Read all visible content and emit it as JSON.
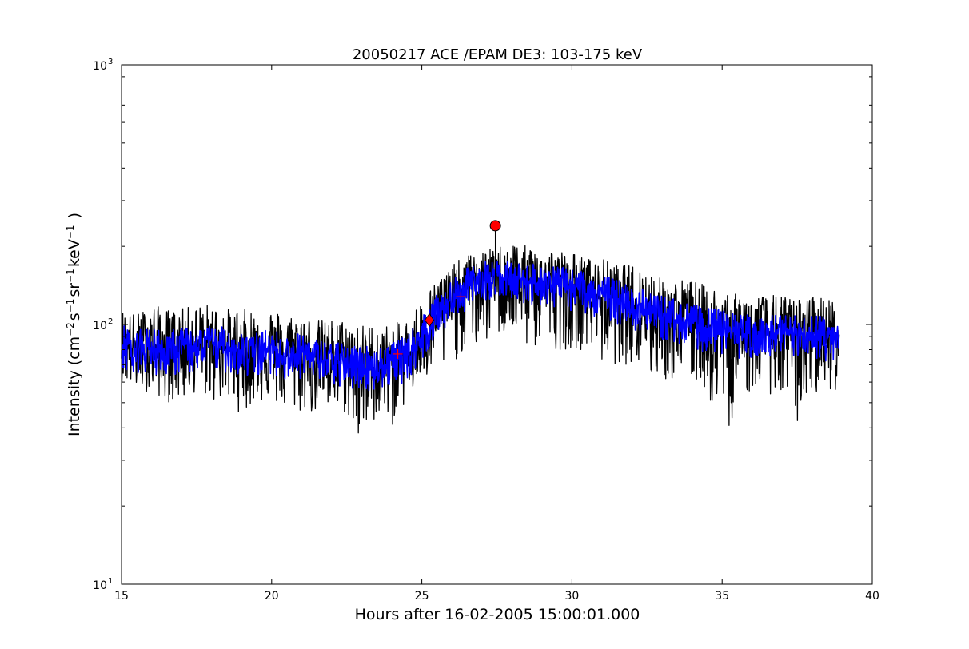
{
  "chart_data": {
    "type": "line",
    "title": "20050217 ACE /EPAM DE3: 103-175 keV",
    "xlabel": "Hours after 16-02-2005 15:00:01.000",
    "ylabel": "Intensity (cm^-2 s^-1 sr^-1 keV^-1 )",
    "ylabel_parts": [
      "Intensity (cm",
      "−2",
      "s",
      "−1",
      "sr",
      "−1",
      "keV",
      "−1",
      " )"
    ],
    "xlim": [
      15,
      40
    ],
    "ylim": [
      10,
      1000
    ],
    "yscale": "log",
    "xticks": [
      15,
      20,
      25,
      30,
      35,
      40
    ],
    "xtick_labels": [
      "15",
      "20",
      "25",
      "30",
      "35",
      "40"
    ],
    "yticks": [
      10,
      100,
      1000
    ],
    "ytick_labels": [
      [
        "10",
        "1"
      ],
      [
        "10",
        "2"
      ],
      [
        "10",
        "3"
      ]
    ],
    "grid": false,
    "series": [
      {
        "style": "raw",
        "color": "#000000",
        "x": [
          15.0,
          15.5,
          16.0,
          16.5,
          17.0,
          17.5,
          18.0,
          18.5,
          19.0,
          19.5,
          20.0,
          20.5,
          21.0,
          21.5,
          22.0,
          22.5,
          23.0,
          23.5,
          24.0,
          24.5,
          25.0,
          25.5,
          26.0,
          26.5,
          27.0,
          27.5,
          28.0,
          28.5,
          29.0,
          29.5,
          30.0,
          30.5,
          31.0,
          31.5,
          32.0,
          32.5,
          33.0,
          33.5,
          34.0,
          34.5,
          35.0,
          35.5,
          36.0,
          36.5,
          37.0,
          37.5,
          38.0,
          38.5,
          38.9
        ],
        "y": [
          85,
          80,
          82,
          78,
          83,
          80,
          85,
          82,
          80,
          78,
          82,
          75,
          78,
          74,
          72,
          70,
          70,
          68,
          72,
          75,
          90,
          110,
          125,
          140,
          150,
          155,
          150,
          148,
          145,
          142,
          138,
          135,
          130,
          125,
          120,
          112,
          108,
          104,
          100,
          97,
          95,
          92,
          92,
          90,
          92,
          90,
          92,
          90,
          88
        ],
        "low": [
          60,
          55,
          55,
          50,
          50,
          55,
          50,
          50,
          45,
          50,
          50,
          45,
          45,
          45,
          45,
          45,
          30,
          45,
          40,
          50,
          60,
          60,
          70,
          80,
          80,
          90,
          90,
          80,
          80,
          80,
          80,
          80,
          70,
          70,
          70,
          60,
          60,
          60,
          60,
          55,
          30,
          50,
          55,
          55,
          50,
          40,
          55,
          55,
          55
        ],
        "high": [
          115,
          110,
          120,
          115,
          115,
          120,
          120,
          115,
          115,
          115,
          115,
          110,
          110,
          105,
          105,
          105,
          100,
          100,
          100,
          105,
          125,
          150,
          170,
          185,
          190,
          200,
          210,
          200,
          200,
          195,
          190,
          180,
          180,
          170,
          170,
          165,
          150,
          150,
          150,
          140,
          140,
          130,
          130,
          130,
          130,
          125,
          130,
          130,
          115
        ]
      },
      {
        "style": "smoothed",
        "color": "#0000ff",
        "x": [
          15.0,
          15.5,
          16.0,
          16.5,
          17.0,
          17.5,
          18.0,
          18.5,
          19.0,
          19.5,
          20.0,
          20.5,
          21.0,
          21.5,
          22.0,
          22.5,
          23.0,
          23.5,
          24.0,
          24.5,
          25.0,
          25.5,
          26.0,
          26.5,
          27.0,
          27.5,
          28.0,
          28.5,
          29.0,
          29.5,
          30.0,
          30.5,
          31.0,
          31.5,
          32.0,
          32.5,
          33.0,
          33.5,
          34.0,
          34.5,
          35.0,
          35.5,
          36.0,
          36.5,
          37.0,
          37.5,
          38.0,
          38.5,
          38.9
        ],
        "y": [
          85,
          80,
          82,
          78,
          83,
          80,
          85,
          82,
          80,
          78,
          82,
          75,
          78,
          74,
          72,
          70,
          70,
          68,
          72,
          75,
          90,
          110,
          125,
          140,
          150,
          155,
          150,
          148,
          145,
          142,
          138,
          135,
          130,
          125,
          120,
          112,
          108,
          104,
          100,
          97,
          95,
          92,
          92,
          90,
          92,
          90,
          92,
          90,
          88
        ],
        "low": [
          68,
          65,
          65,
          62,
          65,
          65,
          67,
          65,
          63,
          62,
          65,
          60,
          62,
          60,
          58,
          56,
          56,
          55,
          58,
          60,
          72,
          90,
          100,
          115,
          122,
          128,
          125,
          120,
          118,
          116,
          112,
          110,
          105,
          100,
          96,
          90,
          87,
          84,
          80,
          78,
          76,
          74,
          74,
          72,
          74,
          72,
          74,
          72,
          70
        ],
        "high": [
          100,
          95,
          98,
          94,
          98,
          96,
          100,
          97,
          95,
          93,
          97,
          90,
          93,
          88,
          86,
          84,
          84,
          82,
          86,
          90,
          107,
          130,
          148,
          165,
          175,
          180,
          175,
          172,
          170,
          168,
          163,
          160,
          155,
          150,
          143,
          135,
          130,
          125,
          120,
          116,
          114,
          110,
          110,
          108,
          110,
          108,
          110,
          108,
          105
        ]
      }
    ],
    "markers": [
      {
        "shape": "plus",
        "x": 24.2,
        "y": 77,
        "color": "#ff0000"
      },
      {
        "shape": "diamond",
        "x": 25.25,
        "y": 104,
        "color": "#ff0000"
      },
      {
        "shape": "plus",
        "x": 26.3,
        "y": 128,
        "color": "#ff0000"
      },
      {
        "shape": "circle",
        "x": 27.45,
        "y": 240,
        "color": "#ff0000"
      }
    ]
  }
}
